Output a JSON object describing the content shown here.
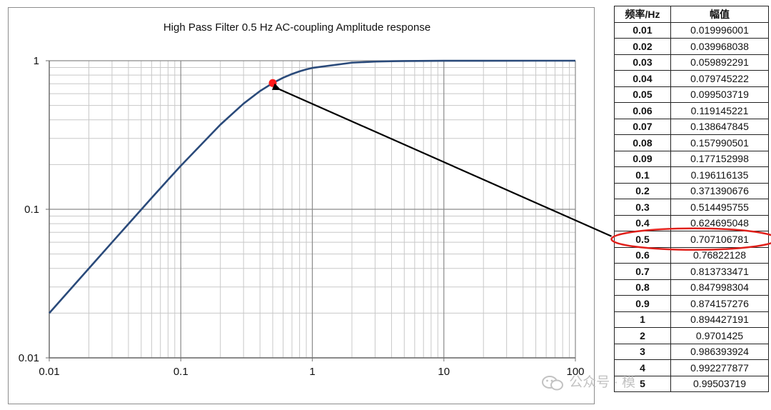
{
  "chart_data": {
    "type": "line",
    "title": "High  Pass Filter 0.5 Hz  AC-coupling  Amplitude  response",
    "xlabel": "",
    "ylabel": "",
    "xscale": "log",
    "yscale": "log",
    "xlim": [
      0.01,
      100
    ],
    "ylim": [
      0.01,
      1
    ],
    "grid": true,
    "x_tick_labels": [
      "0.01",
      "0.1",
      "1",
      "10",
      "100"
    ],
    "y_tick_labels": [
      "0.01",
      "0.1",
      "1"
    ],
    "cutoff_hz": 0.5,
    "series": [
      {
        "color": "#2a4a7a",
        "x": [
          0.01,
          0.02,
          0.03,
          0.04,
          0.05,
          0.06,
          0.07,
          0.08,
          0.09,
          0.1,
          0.2,
          0.3,
          0.4,
          0.5,
          0.6,
          0.7,
          0.8,
          0.9,
          1,
          2,
          3,
          4,
          5,
          10,
          20,
          50,
          100
        ],
        "y": [
          0.019996001,
          0.039968038,
          0.059892291,
          0.079745222,
          0.099503719,
          0.119145221,
          0.138647845,
          0.157990501,
          0.177152998,
          0.196116135,
          0.371390676,
          0.514495755,
          0.624695048,
          0.707106781,
          0.76822128,
          0.813733471,
          0.847998304,
          0.874157276,
          0.894427191,
          0.9701425,
          0.986393924,
          0.992277877,
          0.99503719,
          0.99875234,
          0.99968765,
          0.99995,
          0.9999875
        ]
      }
    ],
    "highlight_point": {
      "x": 0.5,
      "y": 0.707106781,
      "color": "#ff1a1a"
    }
  },
  "table": {
    "headers": [
      "频率/Hz",
      "幅值"
    ],
    "rows": [
      [
        "0.01",
        "0.019996001"
      ],
      [
        "0.02",
        "0.039968038"
      ],
      [
        "0.03",
        "0.059892291"
      ],
      [
        "0.04",
        "0.079745222"
      ],
      [
        "0.05",
        "0.099503719"
      ],
      [
        "0.06",
        "0.119145221"
      ],
      [
        "0.07",
        "0.138647845"
      ],
      [
        "0.08",
        "0.157990501"
      ],
      [
        "0.09",
        "0.177152998"
      ],
      [
        "0.1",
        "0.196116135"
      ],
      [
        "0.2",
        "0.371390676"
      ],
      [
        "0.3",
        "0.514495755"
      ],
      [
        "0.4",
        "0.624695048"
      ],
      [
        "0.5",
        "0.707106781"
      ],
      [
        "0.6",
        "0.76822128"
      ],
      [
        "0.7",
        "0.813733471"
      ],
      [
        "0.8",
        "0.847998304"
      ],
      [
        "0.9",
        "0.874157276"
      ],
      [
        "1",
        "0.894427191"
      ],
      [
        "2",
        "0.9701425"
      ],
      [
        "3",
        "0.986393924"
      ],
      [
        "4",
        "0.992277877"
      ],
      [
        "5",
        "0.99503719"
      ]
    ],
    "highlight_row": 13,
    "highlight_color": "#e0201b"
  },
  "annotation": {
    "arrow_color": "#000000"
  },
  "watermark": {
    "text": "公众号 · 模",
    "icon": "wechat-icon"
  }
}
